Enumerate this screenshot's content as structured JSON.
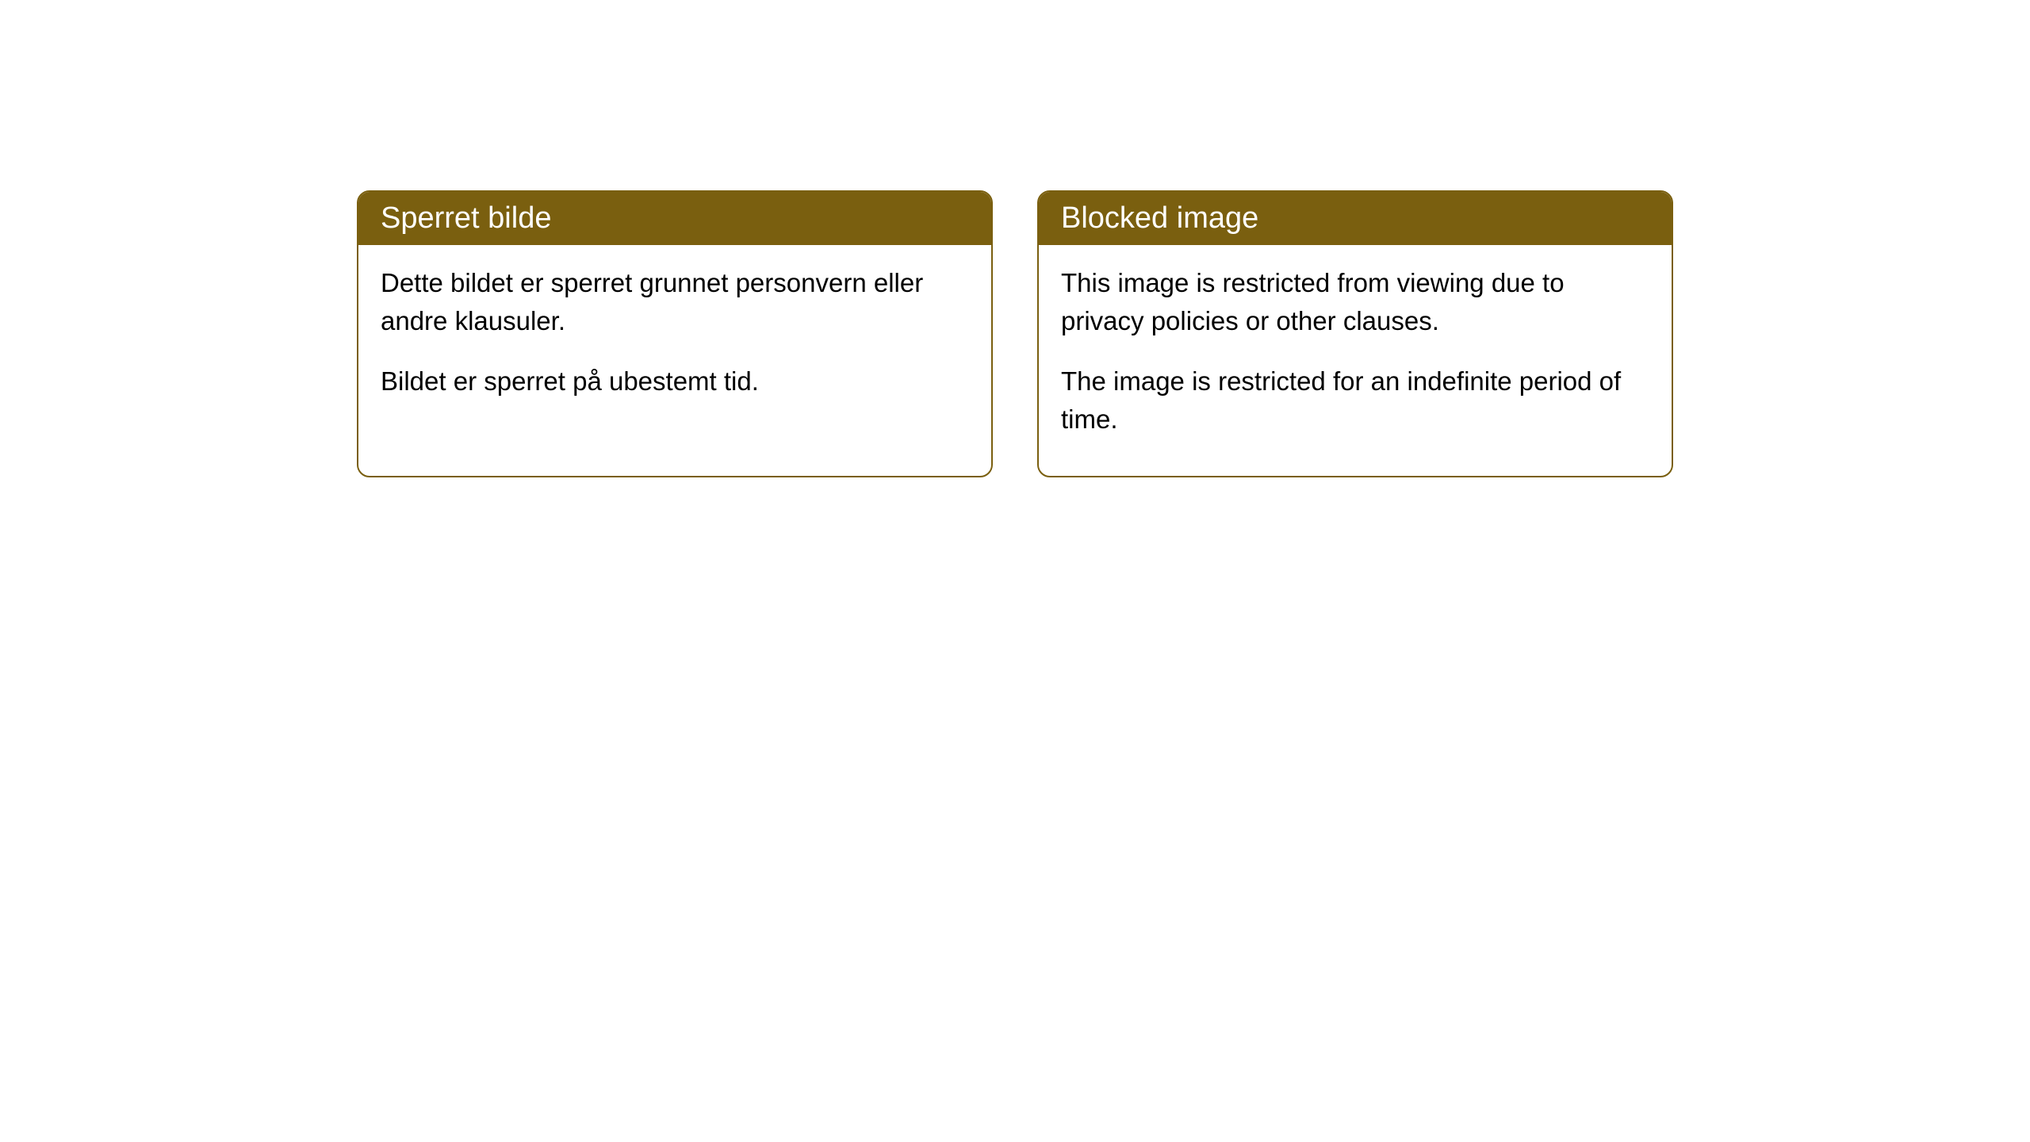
{
  "cards": {
    "left": {
      "title": "Sperret bilde",
      "paragraph1": "Dette bildet er sperret grunnet personvern eller andre klausuler.",
      "paragraph2": "Bildet er sperret på ubestemt tid."
    },
    "right": {
      "title": "Blocked image",
      "paragraph1": "This image is restricted from viewing due to privacy policies or other clauses.",
      "paragraph2": "The image is restricted for an indefinite period of time."
    }
  },
  "styling": {
    "header_background_color": "#7a5f0f",
    "header_text_color": "#ffffff",
    "card_border_color": "#7a5f0f",
    "card_background_color": "#ffffff",
    "body_text_color": "#000000",
    "page_background_color": "#ffffff",
    "header_font_size": 38,
    "body_font_size": 33,
    "border_radius": 16,
    "border_width": 2
  }
}
